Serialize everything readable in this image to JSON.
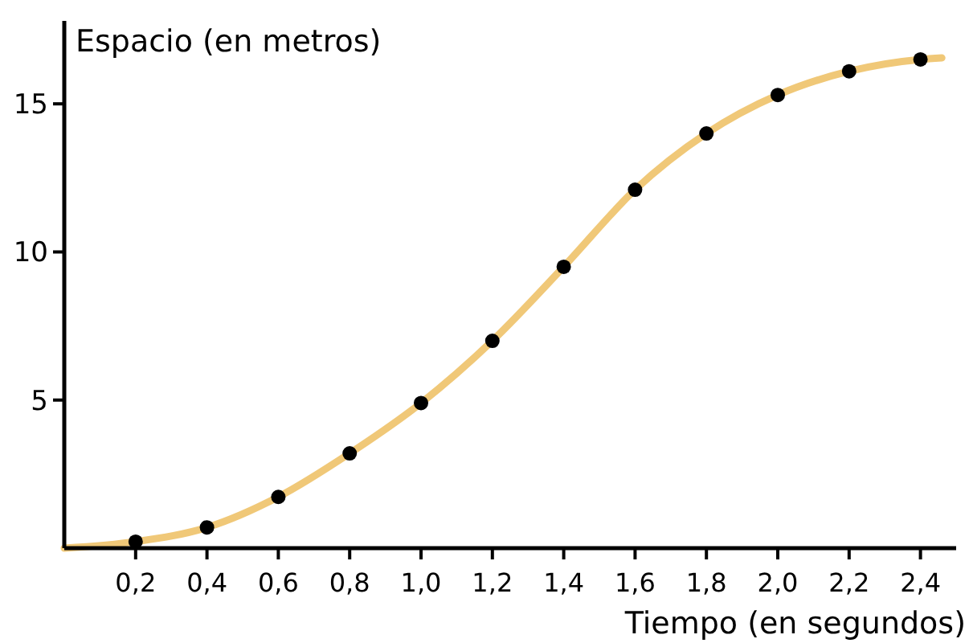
{
  "chart_data": {
    "type": "line",
    "xlabel": "Tiempo (en segundos)",
    "ylabel": "Espacio (en metros)",
    "xlim": [
      0,
      2.5
    ],
    "ylim": [
      0,
      17.8
    ],
    "xticks": [
      {
        "value": 0.2,
        "label": "0,2"
      },
      {
        "value": 0.4,
        "label": "0,4"
      },
      {
        "value": 0.6,
        "label": "0,6"
      },
      {
        "value": 0.8,
        "label": "0,8"
      },
      {
        "value": 1.0,
        "label": "1,0"
      },
      {
        "value": 1.2,
        "label": "1,2"
      },
      {
        "value": 1.4,
        "label": "1,4"
      },
      {
        "value": 1.6,
        "label": "1,6"
      },
      {
        "value": 1.8,
        "label": "1,8"
      },
      {
        "value": 2.0,
        "label": "2,0"
      },
      {
        "value": 2.2,
        "label": "2,2"
      },
      {
        "value": 2.4,
        "label": "2,4"
      }
    ],
    "yticks": [
      5,
      10,
      15
    ],
    "grid": false,
    "series": [
      {
        "color": "#f0c878",
        "marker": "none",
        "x": [
          0,
          0.2,
          0.4,
          0.6,
          0.8,
          1.0,
          1.2,
          1.4,
          1.6,
          1.8,
          2.0,
          2.2,
          2.4,
          2.46
        ],
        "values": [
          0,
          0.22,
          0.7,
          1.73,
          3.2,
          4.9,
          7.0,
          9.5,
          12.1,
          14.0,
          15.3,
          16.1,
          16.5,
          16.55
        ]
      },
      {
        "type": "scatter",
        "color": "#000000",
        "marker": "circle",
        "x": [
          0.2,
          0.4,
          0.6,
          0.8,
          1.0,
          1.2,
          1.4,
          1.6,
          1.8,
          2.0,
          2.2,
          2.4
        ],
        "values": [
          0.22,
          0.7,
          1.73,
          3.2,
          4.9,
          7.0,
          9.5,
          12.1,
          14.0,
          15.3,
          16.1,
          16.5
        ]
      }
    ]
  }
}
